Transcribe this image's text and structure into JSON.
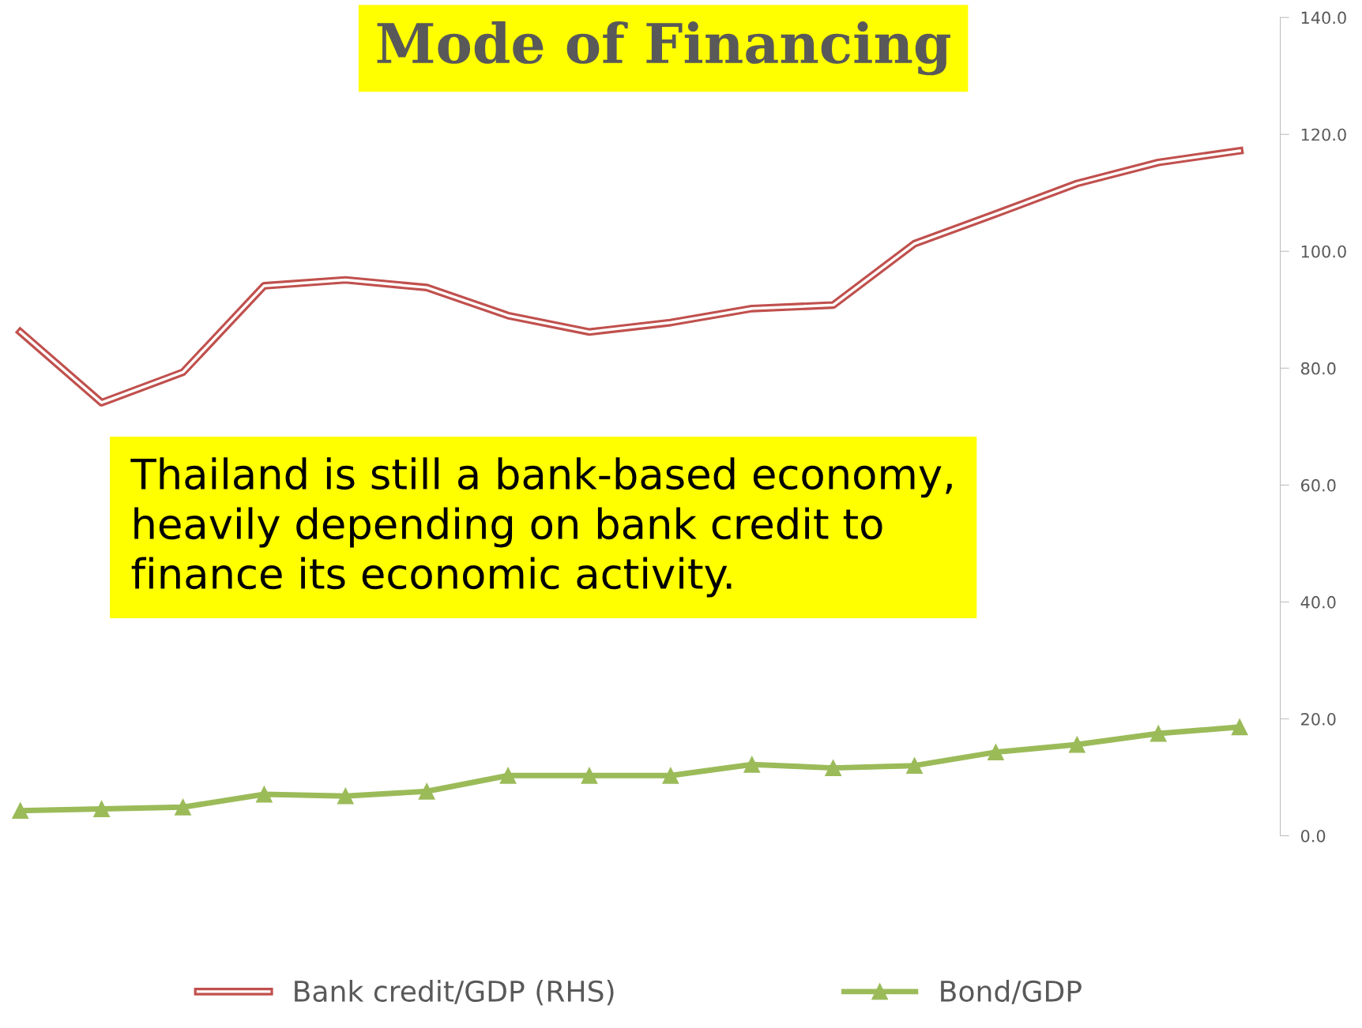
{
  "chart_data": {
    "type": "line",
    "title": "Mode of Financing",
    "categories": [
      null,
      null,
      null,
      null,
      null,
      null,
      null,
      null,
      null,
      null,
      null,
      null,
      null,
      null,
      null,
      null
    ],
    "series": [
      {
        "name": "Bank credit/GDP (RHS)",
        "color": "#c0504d",
        "marker": "none",
        "values": [
          86.2,
          74.1,
          79.3,
          94.1,
          95.1,
          93.8,
          89.0,
          86.2,
          87.8,
          90.2,
          90.8,
          101.3,
          106.4,
          111.6,
          115.2,
          117.2
        ]
      },
      {
        "name": "Bond/GDP",
        "color": "#9bbb59",
        "marker": "triangle",
        "values": [
          4.3,
          4.6,
          4.9,
          7.1,
          6.8,
          7.6,
          10.3,
          10.3,
          10.3,
          12.2,
          11.6,
          12.0,
          14.3,
          15.6,
          17.5,
          18.6
        ]
      }
    ],
    "ylim": [
      0,
      140
    ],
    "yticks": [
      {
        "value": 0,
        "label": "0.0"
      },
      {
        "value": 20,
        "label": "20.0"
      },
      {
        "value": 40,
        "label": "40.0"
      },
      {
        "value": 60,
        "label": "60.0"
      },
      {
        "value": 80,
        "label": "80.0"
      },
      {
        "value": 100,
        "label": "100.0"
      },
      {
        "value": 120,
        "label": "120.0"
      },
      {
        "value": 140,
        "label": "140.0"
      }
    ],
    "tick_labels": "y",
    "grid": false,
    "legend": "bottom",
    "annotations": [
      "Thailand is still a bank-based economy,\nheavily depending on bank credit to\nfinance its economic activity."
    ]
  }
}
